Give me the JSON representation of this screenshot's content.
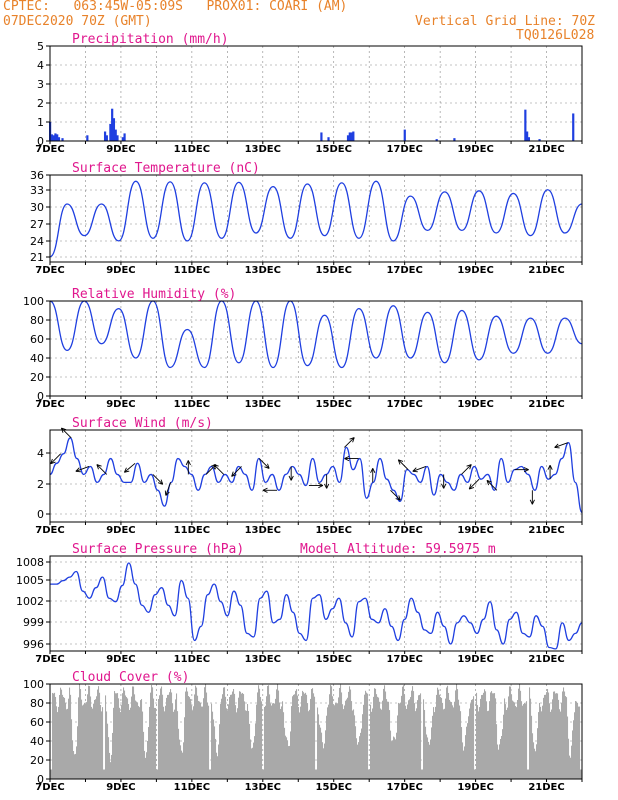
{
  "header": {
    "line1_left": "CPTEC:   063:45W-05:09S   PROX01: COARI (AM)",
    "line2_left": "07DEC2020 70Z (GMT)",
    "line2_right": "Vertical Grid Line: 70Z",
    "line3_right": "TQ0126L028"
  },
  "colors": {
    "header": "#e8822a",
    "title": "#e0178e",
    "series": "#1f3fe0",
    "cloud": "#a9a9a9"
  },
  "chart_data": [
    {
      "type": "bar",
      "title": "Precipitation (mm/h)",
      "ylim": [
        0,
        5
      ],
      "yticks": [
        "0",
        "1",
        "2",
        "3",
        "4",
        "5"
      ],
      "xticks": [
        "7DEC",
        "9DEC",
        "11DEC",
        "13DEC",
        "15DEC",
        "17DEC",
        "19DEC",
        "21DEC"
      ],
      "x_days_span": 15,
      "values": [
        {
          "day": 7.0,
          "v": 1.0
        },
        {
          "day": 7.05,
          "v": 0.35
        },
        {
          "day": 7.1,
          "v": 0.3
        },
        {
          "day": 7.15,
          "v": 0.4
        },
        {
          "day": 7.2,
          "v": 0.35
        },
        {
          "day": 7.25,
          "v": 0.2
        },
        {
          "day": 7.35,
          "v": 0.15
        },
        {
          "day": 8.05,
          "v": 0.3
        },
        {
          "day": 8.55,
          "v": 0.5
        },
        {
          "day": 8.6,
          "v": 0.3
        },
        {
          "day": 8.7,
          "v": 0.9
        },
        {
          "day": 8.75,
          "v": 1.7
        },
        {
          "day": 8.8,
          "v": 1.2
        },
        {
          "day": 8.85,
          "v": 0.6
        },
        {
          "day": 8.9,
          "v": 0.3
        },
        {
          "day": 9.05,
          "v": 0.2
        },
        {
          "day": 9.1,
          "v": 0.4
        },
        {
          "day": 14.65,
          "v": 0.45
        },
        {
          "day": 14.85,
          "v": 0.2
        },
        {
          "day": 15.4,
          "v": 0.3
        },
        {
          "day": 15.45,
          "v": 0.45
        },
        {
          "day": 15.5,
          "v": 0.45
        },
        {
          "day": 15.55,
          "v": 0.5
        },
        {
          "day": 17.0,
          "v": 0.6
        },
        {
          "day": 17.9,
          "v": 0.1
        },
        {
          "day": 18.4,
          "v": 0.15
        },
        {
          "day": 20.4,
          "v": 1.65
        },
        {
          "day": 20.45,
          "v": 0.5
        },
        {
          "day": 20.5,
          "v": 0.2
        },
        {
          "day": 20.8,
          "v": 0.1
        },
        {
          "day": 21.75,
          "v": 1.45
        }
      ]
    },
    {
      "type": "line",
      "title": "Surface Temperature (nC)",
      "ylim": [
        19.5,
        36
      ],
      "yticks": [
        "21",
        "24",
        "27",
        "30",
        "33",
        "36"
      ],
      "xticks": [
        "7DEC",
        "9DEC",
        "11DEC",
        "13DEC",
        "15DEC",
        "17DEC",
        "19DEC",
        "21DEC"
      ],
      "minima": [
        20.5,
        24.5,
        23.5,
        24,
        23.5,
        24,
        25,
        24,
        24.5,
        24,
        23.5,
        25.5,
        25.5,
        25,
        24.5,
        25
      ],
      "maxima": [
        30.5,
        30.5,
        34.8,
        34.7,
        34.5,
        34.6,
        33.8,
        34.3,
        34.5,
        34.8,
        32,
        32.8,
        33,
        32.5,
        33.2,
        30.5
      ]
    },
    {
      "type": "line",
      "title": "Relative Humidity (%)",
      "ylim": [
        0,
        100
      ],
      "yticks": [
        "0",
        "20",
        "40",
        "60",
        "80",
        "100"
      ],
      "xticks": [
        "7DEC",
        "9DEC",
        "11DEC",
        "13DEC",
        "15DEC",
        "17DEC",
        "19DEC",
        "21DEC"
      ],
      "maxima": [
        100,
        92,
        100,
        70,
        100,
        100,
        100,
        85,
        92,
        95,
        88,
        90,
        84,
        82,
        82
      ],
      "minima": [
        48,
        55,
        40,
        30,
        30,
        35,
        30,
        32,
        30,
        40,
        40,
        35,
        38,
        45,
        45,
        55
      ]
    },
    {
      "type": "line",
      "title": "Surface Wind (m/s)",
      "ylim": [
        -0.5,
        5.3
      ],
      "yticks": [
        "0",
        "2",
        "4"
      ],
      "xticks": [
        "7DEC",
        "9DEC",
        "11DEC",
        "13DEC",
        "15DEC",
        "17DEC",
        "19DEC",
        "21DEC"
      ],
      "values": [
        2.5,
        3.2,
        3.8,
        4.8,
        3.5,
        2.5,
        3.0,
        2.0,
        2.5,
        3.5,
        2.5,
        2.0,
        2.0,
        3.2,
        2.0,
        2.5,
        1.5,
        0.5,
        2.0,
        3.5,
        3.0,
        2.5,
        1.5,
        2.5,
        3.0,
        2.0,
        2.5,
        2.0,
        3.0,
        2.5,
        1.5,
        3.5,
        2.0,
        2.5,
        1.5,
        2.5,
        3.0,
        2.5,
        1.8,
        3.5,
        2.0,
        2.5,
        3.0,
        2.0,
        4.2,
        2.8,
        3.5,
        1.0,
        2.0,
        3.5,
        2.2,
        1.5,
        0.8,
        2.8,
        2.5,
        2.0,
        3.0,
        1.2,
        2.5,
        2.0,
        1.5,
        2.5,
        2.0,
        3.0,
        2.2,
        2.5,
        1.5,
        3.5,
        2.0,
        2.8,
        3.0,
        2.5,
        1.5,
        3.0,
        2.2,
        2.5,
        3.5,
        4.5,
        2.0,
        0.1
      ],
      "arrows": [
        {
          "day": 7.3,
          "ang": 225
        },
        {
          "day": 7.6,
          "ang": 135
        },
        {
          "day": 8.1,
          "ang": 200
        },
        {
          "day": 8.6,
          "ang": 135
        },
        {
          "day": 9.4,
          "ang": 220
        },
        {
          "day": 9.9,
          "ang": 315
        },
        {
          "day": 10.4,
          "ang": 250
        },
        {
          "day": 10.9,
          "ang": 90
        },
        {
          "day": 11.4,
          "ang": 45
        },
        {
          "day": 11.9,
          "ang": 135
        },
        {
          "day": 12.4,
          "ang": 225
        },
        {
          "day": 12.9,
          "ang": 315
        },
        {
          "day": 13.4,
          "ang": 180
        },
        {
          "day": 13.8,
          "ang": 270
        },
        {
          "day": 14.3,
          "ang": 0
        },
        {
          "day": 14.8,
          "ang": 270
        },
        {
          "day": 15.3,
          "ang": 45
        },
        {
          "day": 15.7,
          "ang": 180
        },
        {
          "day": 16.1,
          "ang": 90
        },
        {
          "day": 16.6,
          "ang": 315
        },
        {
          "day": 17.1,
          "ang": 135
        },
        {
          "day": 17.6,
          "ang": 200
        },
        {
          "day": 18.1,
          "ang": 270
        },
        {
          "day": 18.6,
          "ang": 45
        },
        {
          "day": 19.1,
          "ang": 225
        },
        {
          "day": 19.6,
          "ang": 135
        },
        {
          "day": 20.1,
          "ang": 0
        },
        {
          "day": 20.6,
          "ang": 270
        },
        {
          "day": 21.1,
          "ang": 90
        },
        {
          "day": 21.6,
          "ang": 200
        }
      ]
    },
    {
      "type": "line",
      "title": "Surface Pressure (hPa)",
      "annotation": "Model Altitude: 59.5975 m",
      "ylim": [
        995.5,
        1009
      ],
      "yticks": [
        "996",
        "999",
        "1002",
        "1005",
        "1008"
      ],
      "xticks": [
        "7DEC",
        "9DEC",
        "11DEC",
        "13DEC",
        "15DEC",
        "17DEC",
        "19DEC",
        "21DEC"
      ],
      "values": [
        1005,
        1005,
        1005.5,
        1006,
        1006.8,
        1004,
        1003,
        1004.5,
        1006,
        1003,
        1002.5,
        1004.8,
        1008,
        1005,
        1002,
        1001,
        1003.5,
        1004.5,
        1002,
        1000.5,
        1005.5,
        1003,
        997,
        999,
        1003.5,
        1005,
        1002.5,
        1000.5,
        1004,
        1002,
        998,
        997.5,
        1003,
        1004,
        999.5,
        1000,
        1003.5,
        1001,
        998,
        997,
        1003,
        1003.5,
        1000,
        1001.5,
        1003,
        999.5,
        997.5,
        1002.5,
        1003,
        1000,
        999.5,
        1001.5,
        999,
        997,
        1000,
        1003,
        1001,
        998.5,
        998,
        1001,
        999,
        996.5,
        999.5,
        1000.5,
        999.5,
        998,
        1000,
        1002.5,
        998.5,
        996.5,
        1000,
        1001,
        998,
        997.5,
        1000.5,
        999,
        996,
        995.8,
        999.5,
        997,
        998,
        999.5
      ]
    },
    {
      "type": "bar",
      "title": "Cloud Cover (%)",
      "ylim": [
        0,
        100
      ],
      "yticks": [
        "0",
        "20",
        "40",
        "60",
        "80",
        "100"
      ],
      "xticks": [
        "7DEC",
        "9DEC",
        "11DEC",
        "13DEC",
        "15DEC",
        "17DEC",
        "19DEC",
        "21DEC"
      ]
    }
  ]
}
